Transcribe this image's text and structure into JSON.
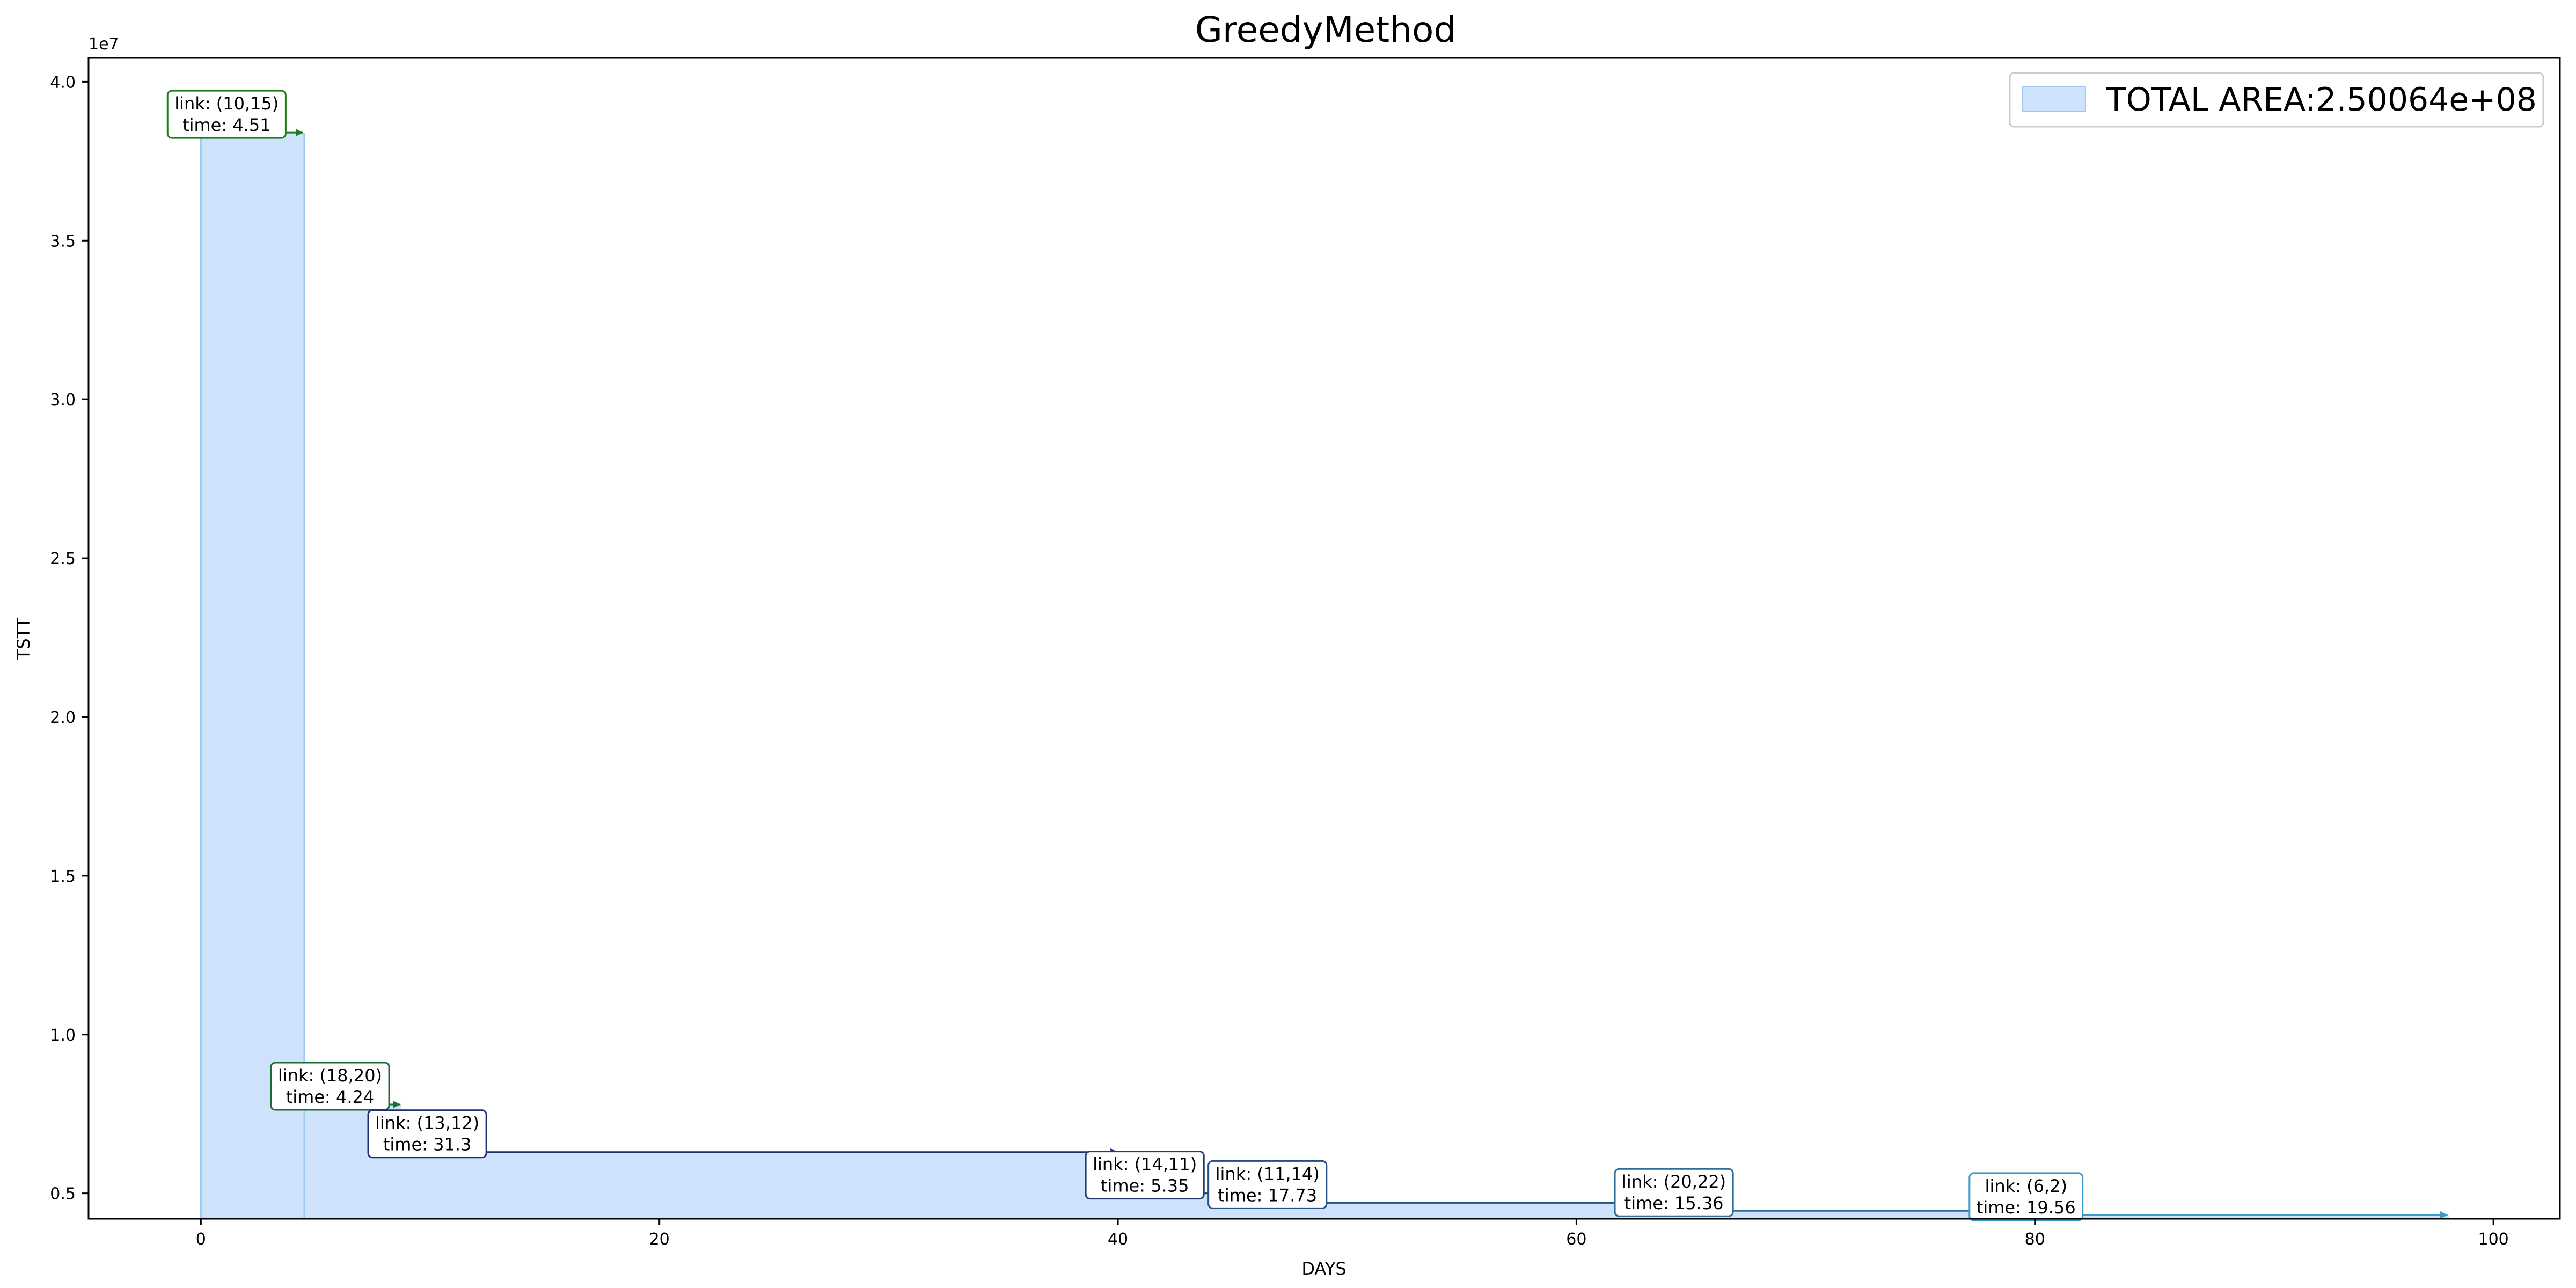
{
  "chart_data": {
    "type": "area",
    "title": "GreedyMethod",
    "xlabel": "DAYS",
    "ylabel": "TSTT",
    "y_offset_label": "1e7",
    "xlim": [
      -4.9,
      102.9
    ],
    "ylim": [
      4200000,
      40750000
    ],
    "x_ticks": [
      0,
      20,
      40,
      60,
      80,
      100
    ],
    "x_tick_labels": [
      "0",
      "20",
      "40",
      "60",
      "80",
      "100"
    ],
    "y_ticks": [
      5000000,
      10000000,
      15000000,
      20000000,
      25000000,
      30000000,
      35000000,
      40000000
    ],
    "y_tick_labels": [
      "0.5",
      "1.0",
      "1.5",
      "2.0",
      "2.5",
      "3.0",
      "3.5",
      "4.0"
    ],
    "grid": false,
    "legend_position": "top-right",
    "fill_color": "#cfe2fb",
    "edge_color": "#9fc8ef",
    "series": [
      {
        "name": "TOTAL AREA:2.50064e+08",
        "steps": [
          {
            "x_start": 0,
            "x_end": 4.51,
            "value": 38400000
          },
          {
            "x_start": 4.51,
            "x_end": 8.75,
            "value": 7800000
          },
          {
            "x_start": 8.75,
            "x_end": 40.05,
            "value": 6300000
          },
          {
            "x_start": 40.05,
            "x_end": 45.4,
            "value": 5000000
          },
          {
            "x_start": 45.4,
            "x_end": 63.13,
            "value": 4700000
          },
          {
            "x_start": 63.13,
            "x_end": 78.49,
            "value": 4450000
          },
          {
            "x_start": 78.49,
            "x_end": 98.05,
            "value": 4320000
          }
        ]
      }
    ],
    "annotations": [
      {
        "link": "link: (10,15)",
        "time": "time: 4.51",
        "x_start": 0,
        "x_end": 4.51,
        "value": 38400000,
        "color": "#1a7f1a"
      },
      {
        "link": "link: (18,20)",
        "time": "time: 4.24",
        "x_start": 4.51,
        "x_end": 8.75,
        "value": 7800000,
        "color": "#1e6b35"
      },
      {
        "link": "link: (13,12)",
        "time": "time: 31.3",
        "x_start": 8.75,
        "x_end": 40.05,
        "value": 6300000,
        "color": "#1f2f6e"
      },
      {
        "link": "link: (14,11)",
        "time": "time: 5.35",
        "x_start": 40.05,
        "x_end": 45.4,
        "value": 5000000,
        "color": "#1f3d6e"
      },
      {
        "link": "link: (11,14)",
        "time": "time: 17.73",
        "x_start": 45.4,
        "x_end": 63.13,
        "value": 4700000,
        "color": "#234f82"
      },
      {
        "link": "link: (20,22)",
        "time": "time: 15.36",
        "x_start": 63.13,
        "x_end": 78.49,
        "value": 4450000,
        "color": "#2d6d96"
      },
      {
        "link": "link: (6,2)",
        "time": "time: 19.56",
        "x_start": 78.49,
        "x_end": 98.05,
        "value": 4320000,
        "color": "#3a9ac8"
      }
    ]
  }
}
